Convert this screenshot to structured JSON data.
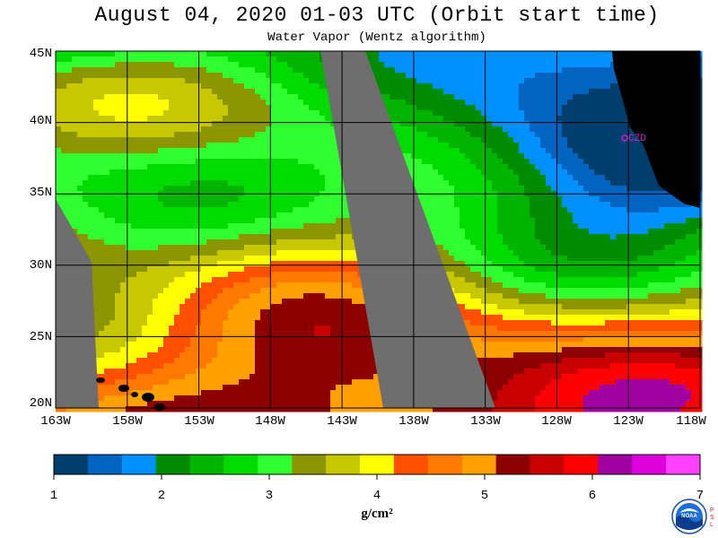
{
  "header": {
    "title": "August 04, 2020  01-03 UTC  (Orbit start time)",
    "subtitle": "Water Vapor (Wentz algorithm)"
  },
  "map": {
    "lat_labels": [
      "45N",
      "40N",
      "35N",
      "30N",
      "25N",
      "20N"
    ],
    "lon_labels": [
      "163W",
      "158W",
      "153W",
      "148W",
      "143W",
      "138W",
      "133W",
      "128W",
      "123W",
      "118W"
    ],
    "city_label": "CZD",
    "lat_range": [
      20,
      45
    ],
    "lon_range": [
      -163,
      -118
    ],
    "no_data_color": "#6e6e6e",
    "land_color": "#000000",
    "city_color": "#d020d0"
  },
  "colorbar": {
    "ticks": [
      "1",
      "2",
      "3",
      "4",
      "5",
      "6",
      "7"
    ],
    "units": "g/cm²",
    "colors": [
      "#003e6e",
      "#0064c0",
      "#0090ff",
      "#008c00",
      "#00b400",
      "#00dc00",
      "#30ff30",
      "#8c9600",
      "#c8c800",
      "#ffff00",
      "#ff5000",
      "#ff7800",
      "#ffa000",
      "#8c0000",
      "#c80000",
      "#ff0000",
      "#a000a0",
      "#dc00dc",
      "#ff40ff"
    ]
  },
  "logo": {
    "name": "noaa-logo",
    "text": "NOAA",
    "side_text": "PSL"
  }
}
